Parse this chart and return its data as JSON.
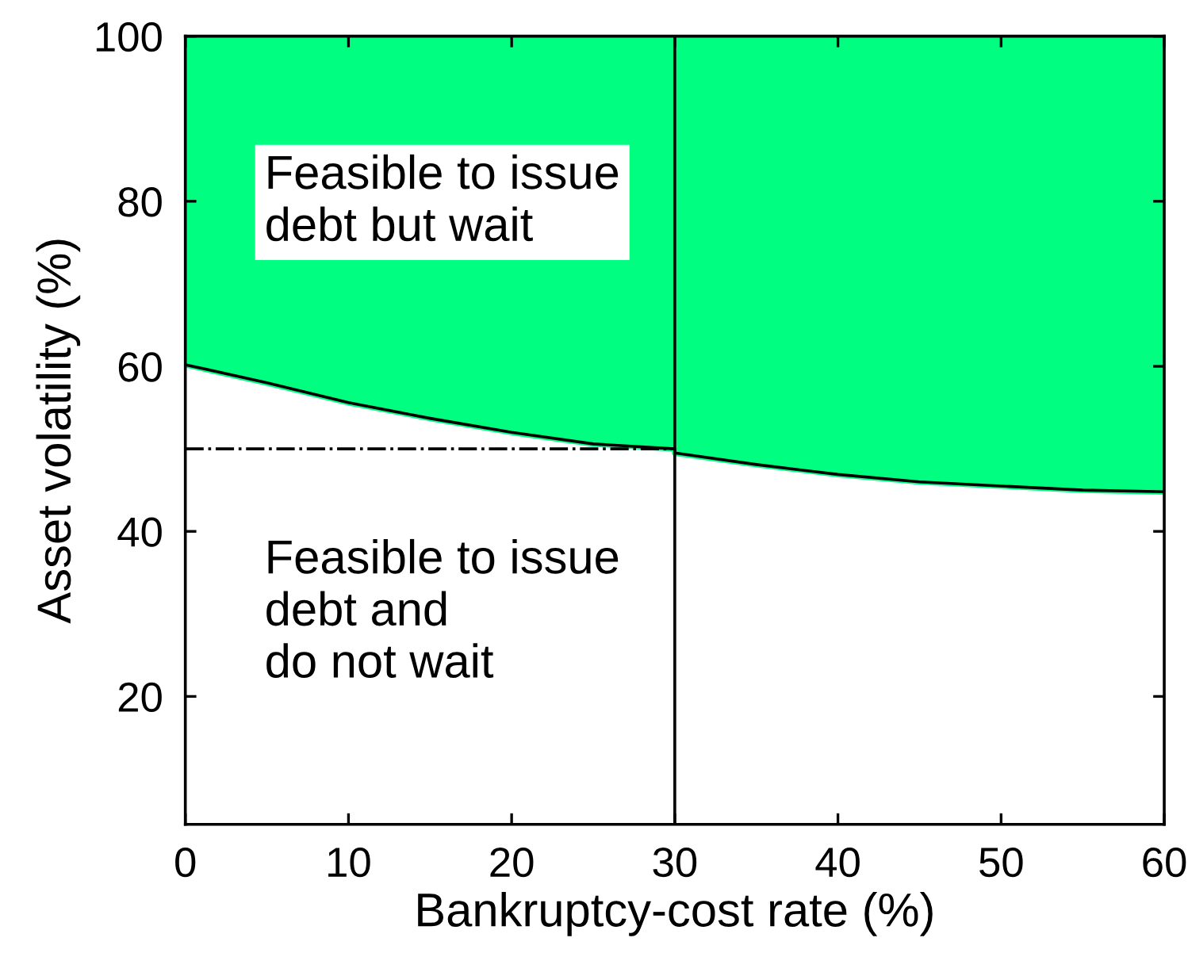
{
  "chart_data": {
    "type": "line",
    "xlabel": "Bankruptcy-cost rate (%)",
    "ylabel": "Asset volatility (%)",
    "xlim": [
      0,
      60
    ],
    "xticks": [
      0,
      10,
      20,
      30,
      40,
      50,
      60
    ],
    "ylim": [
      4.5,
      100
    ],
    "yticks": [
      20,
      40,
      60,
      80,
      100
    ],
    "grid": false,
    "series": [
      {
        "color": "#00ff80",
        "line_style": "solid",
        "x": [
          0,
          5,
          10,
          15,
          20,
          25,
          30,
          30,
          35,
          40,
          45,
          50,
          55,
          60
        ],
        "values": [
          60.2,
          58.0,
          55.6,
          53.7,
          52.0,
          50.6,
          50.0,
          49.5,
          48.1,
          46.9,
          46.0,
          45.5,
          45.0,
          44.8
        ],
        "lower": [
          60.2,
          58.0,
          55.6,
          53.7,
          52.0,
          50.6,
          50.0,
          49.5,
          48.1,
          46.9,
          46.0,
          45.5,
          45.0,
          44.8
        ],
        "upper": [
          100,
          100,
          100,
          100,
          100,
          100,
          100,
          100,
          100,
          100,
          100,
          100,
          100,
          100
        ]
      },
      {
        "type": "line",
        "color": "#000000",
        "line_style": "solid",
        "x": [
          0,
          5,
          10,
          15,
          20,
          25,
          30,
          30,
          35,
          40,
          45,
          50,
          55,
          60
        ],
        "values": [
          60.2,
          58.0,
          55.6,
          53.7,
          52.0,
          50.6,
          50.0,
          49.5,
          48.1,
          46.9,
          46.0,
          45.5,
          45.0,
          44.8
        ]
      },
      {
        "type": "line",
        "color": "#000000",
        "x": [
          0,
          30
        ],
        "values": [
          50,
          50
        ],
        "line_style": "dashdot"
      }
    ],
    "ref_lines": [
      {
        "axis": "x",
        "value": 30,
        "color": "#000000",
        "line_style": "solid"
      }
    ],
    "annotations": [
      "Feasible to issue\ndebt but wait",
      "Feasible to issue\ndebt and\ndo not wait"
    ]
  }
}
